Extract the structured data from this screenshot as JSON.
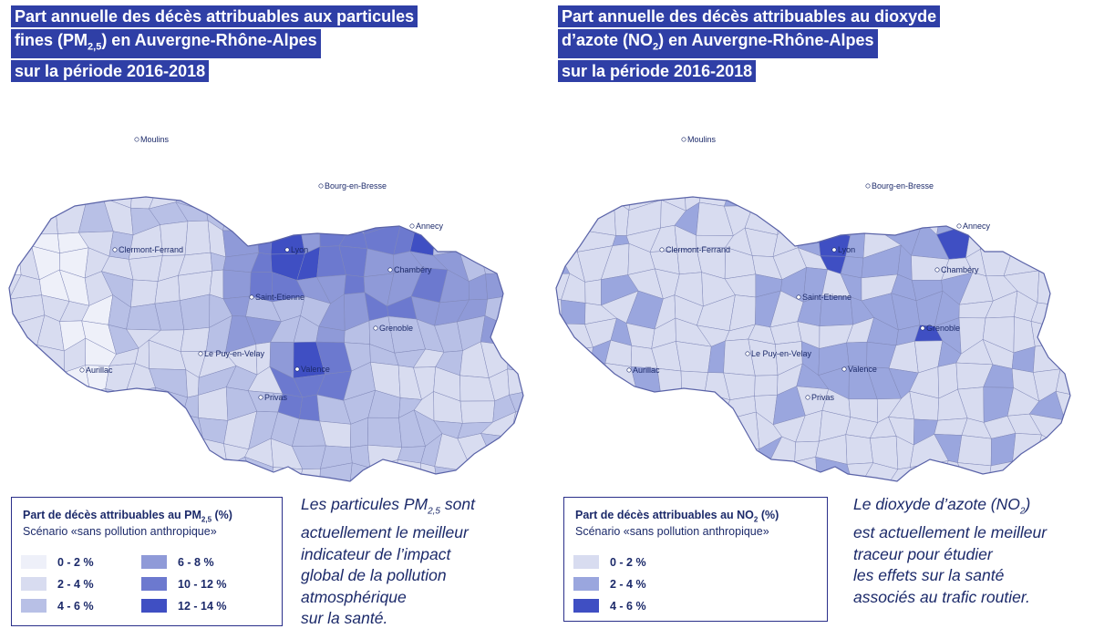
{
  "left": {
    "title_lines": [
      "Part annuelle des décès attribuables aux particules",
      "fines (PM",
      "2,5",
      ") en Auvergne-Rhône-Alpes",
      "sur la période 2016-2018"
    ],
    "legend": {
      "title_pre": "Part de décès attribuables au PM",
      "title_sub": "2,5",
      "title_post": " (%)",
      "subtitle": "Scénario «sans pollution anthropique»",
      "items": [
        {
          "label": "0 - 2 %",
          "color": "#eef0f9"
        },
        {
          "label": "2 - 4 %",
          "color": "#d8dcf0"
        },
        {
          "label": "4 - 6 %",
          "color": "#b8c0e6"
        },
        {
          "label": "6 - 8 %",
          "color": "#8f9ad8"
        },
        {
          "label": "10 - 12 %",
          "color": "#6c79cf"
        },
        {
          "label": "12 - 14 %",
          "color": "#3f4fc3"
        }
      ]
    },
    "note": {
      "l1_pre": "Les particules PM",
      "l1_sub": "2,5",
      "l1_post": " sont",
      "lines": [
        "actuellement le meilleur",
        "indicateur de l’impact",
        "global de la pollution",
        "atmosphérique",
        "sur la santé."
      ]
    }
  },
  "right": {
    "title_lines": [
      "Part annuelle des décès attribuables au dioxyde",
      "d’azote (NO",
      "2",
      ") en Auvergne-Rhône-Alpes",
      "sur la période 2016-2018"
    ],
    "legend": {
      "title_pre": "Part de décès attribuables au NO",
      "title_sub": "2",
      "title_post": " (%)",
      "subtitle": "Scénario «sans pollution anthropique»",
      "items": [
        {
          "label": "0 - 2 %",
          "color": "#d8dcf0"
        },
        {
          "label": "2 - 4 %",
          "color": "#9aa6de"
        },
        {
          "label": "4 - 6 %",
          "color": "#3f4fc3"
        }
      ]
    },
    "note": {
      "l1_pre": "Le dioxyde d’azote (NO",
      "l1_sub": "2",
      "l1_post": ")",
      "lines": [
        "est actuellement le meilleur",
        "traceur pour étudier",
        "les effets sur la santé",
        "associés au trafic routier."
      ]
    }
  },
  "cities": [
    "Moulins",
    "Bourg-en-Bresse",
    "Annecy",
    "Lyon",
    "Chambéry",
    "Clermont-Ferrand",
    "Saint-Etienne",
    "Grenoble",
    "Le Puy-en-Velay",
    "Valence",
    "Aurillac",
    "Privas"
  ]
}
